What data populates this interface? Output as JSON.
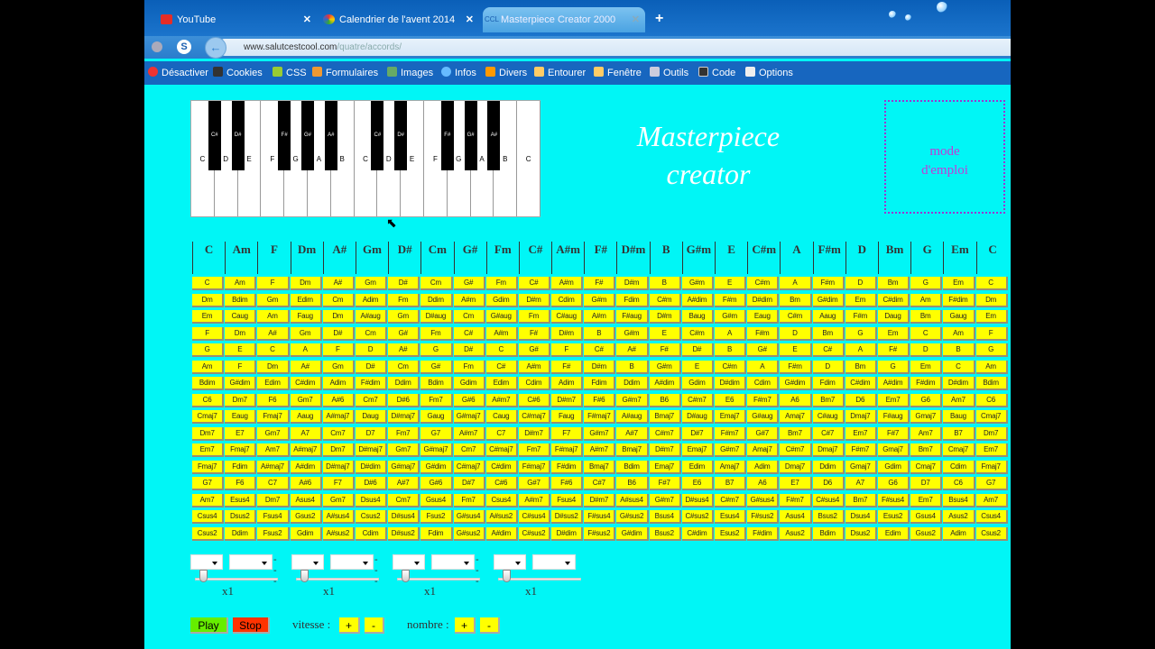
{
  "browser": {
    "tabs": [
      {
        "label": "YouTube",
        "icon": "youtube-icon"
      },
      {
        "label": "Calendrier de l'avent 2014",
        "icon": "chrome-icon"
      },
      {
        "label": "Masterpiece Creator 2000",
        "icon": "site-icon",
        "active": true
      }
    ],
    "url_domain": "www.salutcestcool.com",
    "url_path": "/quatre/accords/",
    "toolbar": [
      "Désactiver",
      "Cookies",
      "CSS",
      "Formulaires",
      "Images",
      "Infos",
      "Divers",
      "Entourer",
      "Fenêtre",
      "Outils",
      "Code",
      "Options"
    ]
  },
  "piano": {
    "white_keys": [
      "C",
      "D",
      "E",
      "F",
      "G",
      "A",
      "B",
      "C",
      "D",
      "E",
      "F",
      "G",
      "A",
      "B",
      "C"
    ],
    "black_keys": [
      "C#",
      "D#",
      "F#",
      "G#",
      "A#",
      "C#",
      "D#",
      "F#",
      "G#",
      "A#"
    ]
  },
  "title_line1": "Masterpiece",
  "title_line2": "creator",
  "mode_emploi_line1": "mode",
  "mode_emploi_line2": "d'emploi",
  "headers": [
    "C",
    "Am",
    "F",
    "Dm",
    "A#",
    "Gm",
    "D#",
    "Cm",
    "G#",
    "Fm",
    "C#",
    "A#m",
    "F#",
    "D#m",
    "B",
    "G#m",
    "E",
    "C#m",
    "A",
    "F#m",
    "D",
    "Bm",
    "G",
    "Em",
    "C"
  ],
  "rows": [
    [
      "C",
      "Am",
      "F",
      "Dm",
      "A#",
      "Gm",
      "D#",
      "Cm",
      "G#",
      "Fm",
      "C#",
      "A#m",
      "F#",
      "D#m",
      "B",
      "G#m",
      "E",
      "C#m",
      "A",
      "F#m",
      "D",
      "Bm",
      "G",
      "Em",
      "C"
    ],
    [
      "Dm",
      "Bdim",
      "Gm",
      "Edim",
      "Cm",
      "Adim",
      "Fm",
      "Ddim",
      "A#m",
      "Gdim",
      "D#m",
      "Cdim",
      "G#m",
      "Fdim",
      "C#m",
      "A#dim",
      "F#m",
      "D#dim",
      "Bm",
      "G#dim",
      "Em",
      "C#dim",
      "Am",
      "F#dim",
      "Dm"
    ],
    [
      "Em",
      "Caug",
      "Am",
      "Faug",
      "Dm",
      "A#aug",
      "Gm",
      "D#aug",
      "Cm",
      "G#aug",
      "Fm",
      "C#aug",
      "A#m",
      "F#aug",
      "D#m",
      "Baug",
      "G#m",
      "Eaug",
      "C#m",
      "Aaug",
      "F#m",
      "Daug",
      "Bm",
      "Gaug",
      "Em"
    ],
    [
      "F",
      "Dm",
      "A#",
      "Gm",
      "D#",
      "Cm",
      "G#",
      "Fm",
      "C#",
      "A#m",
      "F#",
      "D#m",
      "B",
      "G#m",
      "E",
      "C#m",
      "A",
      "F#m",
      "D",
      "Bm",
      "G",
      "Em",
      "C",
      "Am",
      "F"
    ],
    [
      "G",
      "E",
      "C",
      "A",
      "F",
      "D",
      "A#",
      "G",
      "D#",
      "C",
      "G#",
      "F",
      "C#",
      "A#",
      "F#",
      "D#",
      "B",
      "G#",
      "E",
      "C#",
      "A",
      "F#",
      "D",
      "B",
      "G"
    ],
    [
      "Am",
      "F",
      "Dm",
      "A#",
      "Gm",
      "D#",
      "Cm",
      "G#",
      "Fm",
      "C#",
      "A#m",
      "F#",
      "D#m",
      "B",
      "G#m",
      "E",
      "C#m",
      "A",
      "F#m",
      "D",
      "Bm",
      "G",
      "Em",
      "C",
      "Am"
    ],
    [
      "Bdim",
      "G#dim",
      "Edim",
      "C#dim",
      "Adim",
      "F#dim",
      "Ddim",
      "Bdim",
      "Gdim",
      "Edim",
      "Cdim",
      "Adim",
      "Fdim",
      "Ddim",
      "A#dim",
      "Gdim",
      "D#dim",
      "Cdim",
      "G#dim",
      "Fdim",
      "C#dim",
      "A#dim",
      "F#dim",
      "D#dim",
      "Bdim"
    ],
    [
      "C6",
      "Dm7",
      "F6",
      "Gm7",
      "A#6",
      "Cm7",
      "D#6",
      "Fm7",
      "G#6",
      "A#m7",
      "C#6",
      "D#m7",
      "F#6",
      "G#m7",
      "B6",
      "C#m7",
      "E6",
      "F#m7",
      "A6",
      "Bm7",
      "D6",
      "Em7",
      "G6",
      "Am7",
      "C6"
    ],
    [
      "Cmaj7",
      "Eaug",
      "Fmaj7",
      "Aaug",
      "A#maj7",
      "Daug",
      "D#maj7",
      "Gaug",
      "G#maj7",
      "Caug",
      "C#maj7",
      "Faug",
      "F#maj7",
      "A#aug",
      "Bmaj7",
      "D#aug",
      "Emaj7",
      "G#aug",
      "Amaj7",
      "C#aug",
      "Dmaj7",
      "F#aug",
      "Gmaj7",
      "Baug",
      "Cmaj7"
    ],
    [
      "Dm7",
      "E7",
      "Gm7",
      "A7",
      "Cm7",
      "D7",
      "Fm7",
      "G7",
      "A#m7",
      "C7",
      "D#m7",
      "F7",
      "G#m7",
      "A#7",
      "C#m7",
      "D#7",
      "F#m7",
      "G#7",
      "Bm7",
      "C#7",
      "Em7",
      "F#7",
      "Am7",
      "B7",
      "Dm7"
    ],
    [
      "Em7",
      "Fmaj7",
      "Am7",
      "A#maj7",
      "Dm7",
      "D#maj7",
      "Gm7",
      "G#maj7",
      "Cm7",
      "C#maj7",
      "Fm7",
      "F#maj7",
      "A#m7",
      "Bmaj7",
      "D#m7",
      "Emaj7",
      "G#m7",
      "Amaj7",
      "C#m7",
      "Dmaj7",
      "F#m7",
      "Gmaj7",
      "Bm7",
      "Cmaj7",
      "Em7"
    ],
    [
      "Fmaj7",
      "Fdim",
      "A#maj7",
      "A#dim",
      "D#maj7",
      "D#dim",
      "G#maj7",
      "G#dim",
      "C#maj7",
      "C#dim",
      "F#maj7",
      "F#dim",
      "Bmaj7",
      "Bdim",
      "Emaj7",
      "Edim",
      "Amaj7",
      "Adim",
      "Dmaj7",
      "Ddim",
      "Gmaj7",
      "Gdim",
      "Cmaj7",
      "Cdim",
      "Fmaj7"
    ],
    [
      "G7",
      "F6",
      "C7",
      "A#6",
      "F7",
      "D#6",
      "A#7",
      "G#6",
      "D#7",
      "C#6",
      "G#7",
      "F#6",
      "C#7",
      "B6",
      "F#7",
      "E6",
      "B7",
      "A6",
      "E7",
      "D6",
      "A7",
      "G6",
      "D7",
      "C6",
      "G7"
    ],
    [
      "Am7",
      "Esus4",
      "Dm7",
      "Asus4",
      "Gm7",
      "Dsus4",
      "Cm7",
      "Gsus4",
      "Fm7",
      "Csus4",
      "A#m7",
      "Fsus4",
      "D#m7",
      "A#sus4",
      "G#m7",
      "D#sus4",
      "C#m7",
      "G#sus4",
      "F#m7",
      "C#sus4",
      "Bm7",
      "F#sus4",
      "Em7",
      "Bsus4",
      "Am7"
    ],
    [
      "Csus4",
      "Dsus2",
      "Fsus4",
      "Gsus2",
      "A#sus4",
      "Csus2",
      "D#sus4",
      "Fsus2",
      "G#sus4",
      "A#sus2",
      "C#sus4",
      "D#sus2",
      "F#sus4",
      "G#sus2",
      "Bsus4",
      "C#sus2",
      "Esus4",
      "F#sus2",
      "Asus4",
      "Bsus2",
      "Dsus4",
      "Esus2",
      "Gsus4",
      "Asus2",
      "Csus4"
    ],
    [
      "Csus2",
      "Ddim",
      "Fsus2",
      "Gdim",
      "A#sus2",
      "Cdim",
      "D#sus2",
      "Fdim",
      "G#sus2",
      "A#dim",
      "C#sus2",
      "D#dim",
      "F#sus2",
      "G#dim",
      "Bsus2",
      "C#dim",
      "Esus2",
      "F#dim",
      "Asus2",
      "Bdim",
      "Dsus2",
      "Edim",
      "Gsus2",
      "Adim",
      "Csus2"
    ]
  ],
  "controls": {
    "groups": [
      {
        "multiplier": "x1"
      },
      {
        "multiplier": "x1"
      },
      {
        "multiplier": "x1"
      },
      {
        "multiplier": "x1"
      }
    ],
    "separator": "---",
    "play": "Play",
    "stop": "Stop",
    "vitesse_label": "vitesse :",
    "nombre_label": "nombre :",
    "plus": "+",
    "minus": "-"
  },
  "colors": {
    "page_bg": "#00f6f6",
    "cell_bg": "#ffff00",
    "play": "#66ee00",
    "stop": "#ff3300",
    "mode_border": "#9b35d0"
  }
}
